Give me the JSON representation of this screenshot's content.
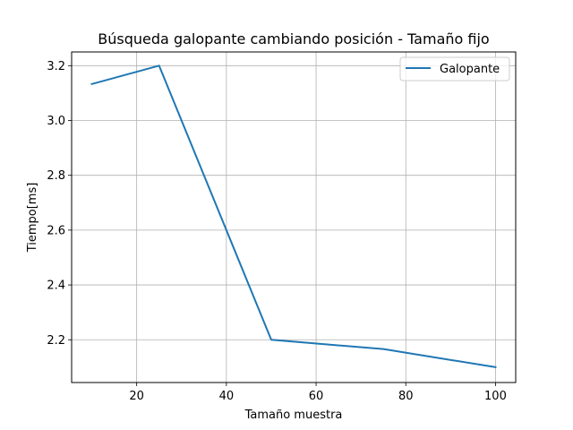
{
  "chart_data": {
    "type": "line",
    "title": "Búsqueda galopante cambiando posición - Tamaño fijo",
    "xlabel": "Tamaño muestra",
    "ylabel": "Tiempo[ms]",
    "xlim": [
      5.5,
      104.5
    ],
    "ylim": [
      2.044,
      3.25
    ],
    "xticks": [
      20,
      40,
      60,
      80,
      100
    ],
    "yticks": [
      2.2,
      2.4,
      2.6,
      2.8,
      3.0,
      3.2
    ],
    "ytick_labels": [
      "2.2",
      "2.4",
      "2.6",
      "2.8",
      "3.0",
      "3.2"
    ],
    "grid": true,
    "legend_position": "top-right",
    "series": [
      {
        "name": "Galopante",
        "color": "#1f77b4",
        "x": [
          10,
          25,
          40,
          50,
          75,
          100
        ],
        "y": [
          3.133,
          3.2,
          2.6,
          2.2,
          2.166,
          2.1
        ]
      }
    ]
  }
}
